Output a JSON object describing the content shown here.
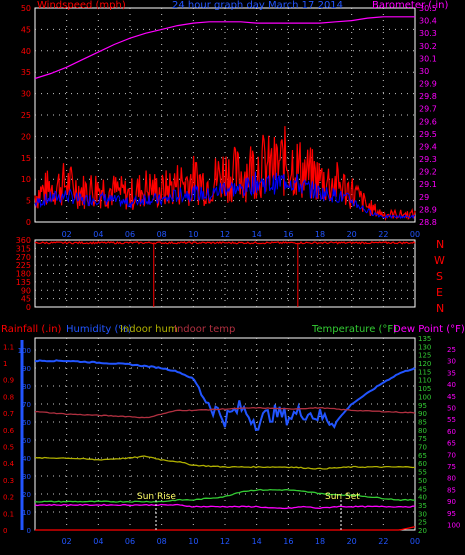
{
  "header": {
    "left_title": "Windspeed (mph)",
    "center_title": "24 hour graph day  March 17 2014",
    "right_title": "Barometer (.in)"
  },
  "direction_letters": [
    "N",
    "W",
    "S",
    "E",
    "N"
  ],
  "bottom_labels": {
    "rainfall": "Rainfall (.in)",
    "humidity": "Humidity (%)",
    "indoor_hum": "Indoor hum",
    "indoor_temp": "Indoor temp",
    "temperature": "Temperature (°F)",
    "dew_point": "Dew Point (°F)",
    "sun_rise": "Sun Rise",
    "sun_set": "Sun Set"
  },
  "colors": {
    "grid": "#c8c8c8",
    "axis": "#ffffff",
    "wind": "#ff0000",
    "gust": "#0000ff",
    "barometer": "#ff00ff",
    "direction": "#ff0000",
    "humidity": "#2255ff",
    "indoor_hum": "#b0b000",
    "indoor_temp": "#b03040",
    "temperature": "#33cc33",
    "dew_point": "#ff00ff",
    "rainfall": "#ff0000"
  },
  "chart_data": [
    {
      "type": "line",
      "title": "24 hour graph day  March 17 2014",
      "x_ticks": [
        "02",
        "04",
        "06",
        "08",
        "10",
        "12",
        "14",
        "16",
        "18",
        "20",
        "22",
        "00"
      ],
      "y_left": {
        "label": "Windspeed (mph)",
        "ticks": [
          0,
          5,
          10,
          15,
          20,
          25,
          30,
          35,
          40,
          45,
          50
        ],
        "ylim": [
          0,
          50
        ]
      },
      "y_right": {
        "label": "Barometer (.in)",
        "ticks": [
          "28.8",
          "28.9",
          "29",
          "29.1",
          "29.2",
          "29.3",
          "29.4",
          "29.5",
          "29.6",
          "29.7",
          "29.8",
          "29.9",
          "30",
          "30.1",
          "30.2",
          "30.3",
          "30.4",
          "30.5"
        ],
        "ylim": [
          28.8,
          30.5
        ]
      },
      "series": [
        {
          "name": "Windspeed (mph)",
          "x": [
            0,
            1,
            2,
            3,
            4,
            5,
            6,
            7,
            8,
            9,
            10,
            11,
            12,
            13,
            14,
            15,
            16,
            17,
            18,
            19,
            20,
            21,
            22,
            23,
            24
          ],
          "values": [
            7,
            9,
            10,
            8,
            9,
            8,
            7,
            9,
            8,
            10,
            11,
            10,
            13,
            12,
            15,
            14,
            16,
            13,
            11,
            10,
            8,
            4,
            2,
            2,
            2
          ]
        },
        {
          "name": "Barometer (.in)",
          "x": [
            0,
            1,
            2,
            3,
            4,
            5,
            6,
            7,
            8,
            9,
            10,
            11,
            12,
            13,
            14,
            15,
            16,
            17,
            18,
            19,
            20,
            21,
            22,
            23,
            24
          ],
          "values": [
            29.94,
            29.98,
            30.03,
            30.09,
            30.15,
            30.21,
            30.26,
            30.3,
            30.33,
            30.36,
            30.38,
            30.39,
            30.39,
            30.39,
            30.38,
            30.38,
            30.38,
            30.38,
            30.38,
            30.39,
            30.4,
            30.42,
            30.43,
            30.43,
            30.43
          ]
        }
      ]
    },
    {
      "type": "line",
      "y_left": {
        "ticks": [
          0,
          45,
          90,
          135,
          180,
          225,
          270,
          315,
          360
        ],
        "ylim": [
          0,
          360
        ]
      },
      "series": [
        {
          "name": "Wind direction",
          "x": [
            0,
            1,
            2,
            3,
            4,
            5,
            6,
            7,
            8,
            9,
            10,
            11,
            12,
            13,
            14,
            15,
            16,
            17,
            18,
            19,
            20,
            21,
            22,
            23,
            24
          ],
          "values": [
            345,
            345,
            345,
            345,
            345,
            345,
            345,
            345,
            345,
            345,
            345,
            345,
            345,
            345,
            345,
            345,
            345,
            345,
            345,
            345,
            345,
            345,
            345,
            345,
            345
          ]
        }
      ]
    },
    {
      "type": "line",
      "y_left": {
        "label": "Rainfall (.in)",
        "ticks": [
          "0",
          "0.1",
          "0.2",
          "0.3",
          "0.4",
          "0.5",
          "0.6",
          "0.7",
          "0.8",
          "0.9",
          "1",
          "1.1"
        ],
        "ylim": [
          0,
          1.15
        ]
      },
      "y_left2": {
        "label": "Humidity (%)",
        "ticks": [
          0,
          10,
          20,
          30,
          40,
          50,
          60,
          70,
          80,
          90,
          100
        ],
        "ylim": [
          0,
          100
        ]
      },
      "y_right": {
        "label": "Temperature (°F)",
        "ticks": [
          20,
          25,
          30,
          35,
          40,
          45,
          50,
          55,
          60,
          65,
          70,
          75,
          80,
          85,
          90,
          95,
          100,
          105,
          110,
          115,
          120,
          125,
          130,
          135
        ],
        "ylim": [
          20,
          135
        ]
      },
      "y_right2": {
        "label": "Dew Point (°F)",
        "ticks": [
          25,
          30,
          35,
          40,
          45,
          50,
          55,
          60,
          65,
          70,
          75,
          80,
          85,
          90,
          95,
          100
        ]
      },
      "series": [
        {
          "name": "Humidity (%)",
          "x": [
            0,
            2,
            4,
            6,
            7,
            8,
            9,
            10,
            11,
            12,
            13,
            14,
            15,
            16,
            17,
            18,
            19,
            20,
            21,
            22,
            23,
            24
          ],
          "values": [
            94,
            94,
            93,
            92,
            91,
            90,
            88,
            84,
            70,
            62,
            68,
            60,
            65,
            63,
            66,
            63,
            60,
            70,
            76,
            82,
            87,
            90
          ]
        },
        {
          "name": "Indoor hum",
          "x": [
            0,
            2,
            4,
            6,
            7,
            8,
            9,
            10,
            12,
            14,
            16,
            18,
            20,
            22,
            24
          ],
          "values": [
            40,
            40,
            39,
            40,
            41,
            39,
            38,
            36,
            35,
            35,
            35,
            34,
            35,
            35,
            35
          ]
        },
        {
          "name": "Indoor temp",
          "x": [
            0,
            2,
            4,
            6,
            7,
            8,
            9,
            10,
            12,
            14,
            16,
            18,
            20,
            22,
            24
          ],
          "values": [
            94,
            92,
            91,
            90,
            89,
            92,
            95,
            95,
            96,
            97,
            96,
            97,
            95,
            94,
            93
          ]
        },
        {
          "name": "Temperature (°F)",
          "x": [
            0,
            2,
            4,
            6,
            7,
            8,
            9,
            10,
            11,
            12,
            13,
            14,
            15,
            16,
            17,
            18,
            19,
            20,
            21,
            22,
            23,
            24
          ],
          "values": [
            37,
            37,
            37,
            37,
            37,
            37,
            38,
            38,
            39,
            40,
            43,
            44,
            44,
            44,
            43,
            42,
            41,
            41,
            40,
            39,
            38,
            38
          ]
        },
        {
          "name": "Dew Point (°F)",
          "x": [
            0,
            2,
            4,
            6,
            7,
            8,
            9,
            10,
            11,
            12,
            13,
            14,
            15,
            16,
            17,
            18,
            19,
            20,
            21,
            22,
            23,
            24
          ],
          "values": [
            35,
            35,
            35,
            35,
            35,
            35,
            35,
            34,
            34,
            34,
            34,
            34,
            33,
            33,
            34,
            33,
            34,
            34,
            34,
            34,
            34,
            34
          ]
        },
        {
          "name": "Rainfall (.in)",
          "x": [
            0,
            6,
            12,
            18,
            23,
            24
          ],
          "values": [
            0,
            0,
            0,
            0,
            0,
            0.02
          ]
        }
      ]
    }
  ]
}
